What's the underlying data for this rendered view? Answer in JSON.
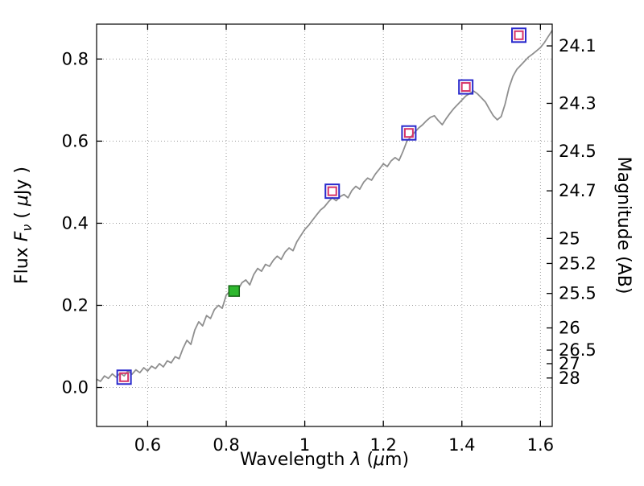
{
  "figure": {
    "background": "#ffffff"
  },
  "chart_data": {
    "type": "line",
    "title": "",
    "xlabel": "Wavelength λ (μm)",
    "ylabel": "Flux Fν ( μJy )",
    "ylabel_right": "Magnitude (AB)",
    "xlabel_parts": [
      {
        "t": "Wavelength  ",
        "i": false
      },
      {
        "t": "λ",
        "i": true
      },
      {
        "t": " (",
        "i": false
      },
      {
        "t": "μ",
        "i": true
      },
      {
        "t": "m)",
        "i": false
      }
    ],
    "ylabel_left_parts": [
      {
        "t": "Flux  ",
        "i": false
      },
      {
        "t": "F",
        "i": true
      },
      {
        "t": "ν",
        "i": true,
        "sub": true
      },
      {
        "t": "  ( ",
        "i": false
      },
      {
        "t": "μ",
        "i": true
      },
      {
        "t": "Jy )",
        "i": false
      }
    ],
    "xlim": [
      0.47,
      1.63
    ],
    "ylim": [
      -0.095,
      0.885
    ],
    "grid": "dotted",
    "legend": "none",
    "xticks": [
      {
        "v": 0.6,
        "label": "0.6"
      },
      {
        "v": 0.8,
        "label": "0.8"
      },
      {
        "v": 1.0,
        "label": "1"
      },
      {
        "v": 1.2,
        "label": "1.2"
      },
      {
        "v": 1.4,
        "label": "1.4"
      },
      {
        "v": 1.6,
        "label": "1.6"
      }
    ],
    "yticks_left": [
      {
        "v": 0.0,
        "label": "0.0"
      },
      {
        "v": 0.2,
        "label": "0.2"
      },
      {
        "v": 0.4,
        "label": "0.4"
      },
      {
        "v": 0.6,
        "label": "0.6"
      },
      {
        "v": 0.8,
        "label": "0.8"
      }
    ],
    "yticks_right": [
      {
        "flux": 0.832,
        "label": "24.1"
      },
      {
        "flux": 0.692,
        "label": "24.3"
      },
      {
        "flux": 0.575,
        "label": "24.5"
      },
      {
        "flux": 0.479,
        "label": "24.7"
      },
      {
        "flux": 0.363,
        "label": "25"
      },
      {
        "flux": 0.302,
        "label": "25.2"
      },
      {
        "flux": 0.229,
        "label": "25.5"
      },
      {
        "flux": 0.145,
        "label": "26"
      },
      {
        "flux": 0.091,
        "label": "26.5"
      },
      {
        "flux": 0.058,
        "label": "27"
      },
      {
        "flux": 0.023,
        "label": "28"
      }
    ],
    "series": [
      {
        "name": "model-spectrum",
        "type": "line",
        "points": [
          [
            0.47,
            0.02
          ],
          [
            0.48,
            0.015
          ],
          [
            0.49,
            0.028
          ],
          [
            0.5,
            0.022
          ],
          [
            0.51,
            0.033
          ],
          [
            0.52,
            0.025
          ],
          [
            0.53,
            0.035
          ],
          [
            0.54,
            0.028
          ],
          [
            0.55,
            0.04
          ],
          [
            0.56,
            0.032
          ],
          [
            0.57,
            0.043
          ],
          [
            0.58,
            0.036
          ],
          [
            0.59,
            0.048
          ],
          [
            0.6,
            0.04
          ],
          [
            0.61,
            0.052
          ],
          [
            0.62,
            0.046
          ],
          [
            0.63,
            0.058
          ],
          [
            0.64,
            0.05
          ],
          [
            0.65,
            0.065
          ],
          [
            0.66,
            0.06
          ],
          [
            0.67,
            0.075
          ],
          [
            0.68,
            0.07
          ],
          [
            0.69,
            0.095
          ],
          [
            0.7,
            0.115
          ],
          [
            0.71,
            0.105
          ],
          [
            0.72,
            0.14
          ],
          [
            0.73,
            0.16
          ],
          [
            0.74,
            0.15
          ],
          [
            0.75,
            0.175
          ],
          [
            0.76,
            0.168
          ],
          [
            0.77,
            0.19
          ],
          [
            0.78,
            0.2
          ],
          [
            0.79,
            0.193
          ],
          [
            0.8,
            0.225
          ],
          [
            0.81,
            0.235
          ],
          [
            0.82,
            0.245
          ],
          [
            0.83,
            0.238
          ],
          [
            0.84,
            0.255
          ],
          [
            0.85,
            0.262
          ],
          [
            0.86,
            0.25
          ],
          [
            0.87,
            0.275
          ],
          [
            0.88,
            0.29
          ],
          [
            0.89,
            0.283
          ],
          [
            0.9,
            0.3
          ],
          [
            0.91,
            0.295
          ],
          [
            0.92,
            0.31
          ],
          [
            0.93,
            0.32
          ],
          [
            0.94,
            0.312
          ],
          [
            0.95,
            0.33
          ],
          [
            0.96,
            0.34
          ],
          [
            0.97,
            0.333
          ],
          [
            0.98,
            0.355
          ],
          [
            0.99,
            0.37
          ],
          [
            1.0,
            0.385
          ],
          [
            1.01,
            0.395
          ],
          [
            1.02,
            0.408
          ],
          [
            1.03,
            0.42
          ],
          [
            1.04,
            0.432
          ],
          [
            1.05,
            0.44
          ],
          [
            1.06,
            0.452
          ],
          [
            1.07,
            0.462
          ],
          [
            1.08,
            0.455
          ],
          [
            1.09,
            0.465
          ],
          [
            1.1,
            0.47
          ],
          [
            1.11,
            0.462
          ],
          [
            1.12,
            0.48
          ],
          [
            1.13,
            0.49
          ],
          [
            1.14,
            0.483
          ],
          [
            1.15,
            0.5
          ],
          [
            1.16,
            0.51
          ],
          [
            1.17,
            0.505
          ],
          [
            1.18,
            0.52
          ],
          [
            1.19,
            0.532
          ],
          [
            1.2,
            0.545
          ],
          [
            1.21,
            0.538
          ],
          [
            1.22,
            0.552
          ],
          [
            1.23,
            0.56
          ],
          [
            1.24,
            0.553
          ],
          [
            1.25,
            0.575
          ],
          [
            1.26,
            0.6
          ],
          [
            1.27,
            0.61
          ],
          [
            1.28,
            0.622
          ],
          [
            1.29,
            0.632
          ],
          [
            1.3,
            0.64
          ],
          [
            1.31,
            0.65
          ],
          [
            1.32,
            0.658
          ],
          [
            1.33,
            0.662
          ],
          [
            1.34,
            0.65
          ],
          [
            1.35,
            0.64
          ],
          [
            1.36,
            0.655
          ],
          [
            1.37,
            0.668
          ],
          [
            1.38,
            0.68
          ],
          [
            1.39,
            0.69
          ],
          [
            1.4,
            0.7
          ],
          [
            1.41,
            0.71
          ],
          [
            1.42,
            0.716
          ],
          [
            1.43,
            0.722
          ],
          [
            1.44,
            0.715
          ],
          [
            1.45,
            0.705
          ],
          [
            1.46,
            0.695
          ],
          [
            1.47,
            0.678
          ],
          [
            1.48,
            0.662
          ],
          [
            1.49,
            0.652
          ],
          [
            1.5,
            0.66
          ],
          [
            1.51,
            0.69
          ],
          [
            1.52,
            0.73
          ],
          [
            1.53,
            0.758
          ],
          [
            1.54,
            0.775
          ],
          [
            1.55,
            0.785
          ],
          [
            1.56,
            0.795
          ],
          [
            1.57,
            0.805
          ],
          [
            1.58,
            0.812
          ],
          [
            1.59,
            0.82
          ],
          [
            1.6,
            0.828
          ],
          [
            1.61,
            0.84
          ],
          [
            1.62,
            0.855
          ],
          [
            1.63,
            0.87
          ]
        ]
      },
      {
        "name": "photometry-points",
        "type": "scatter",
        "points": [
          {
            "x": 0.54,
            "y": 0.025,
            "marker": "double-square"
          },
          {
            "x": 0.82,
            "y": 0.235,
            "marker": "green-square"
          },
          {
            "x": 1.07,
            "y": 0.478,
            "marker": "double-square"
          },
          {
            "x": 1.265,
            "y": 0.62,
            "marker": "double-square"
          },
          {
            "x": 1.41,
            "y": 0.732,
            "marker": "double-square"
          },
          {
            "x": 1.545,
            "y": 0.858,
            "marker": "double-square"
          }
        ]
      }
    ],
    "colors": {
      "spectrum": "#8f8f8f",
      "grid": "#9e9e9e",
      "marker_outer": "#2929cc",
      "marker_inner": "#d63368",
      "green_fill": "#2eb82e",
      "green_edge": "#166616",
      "frame": "#000000",
      "text": "#000000"
    }
  }
}
